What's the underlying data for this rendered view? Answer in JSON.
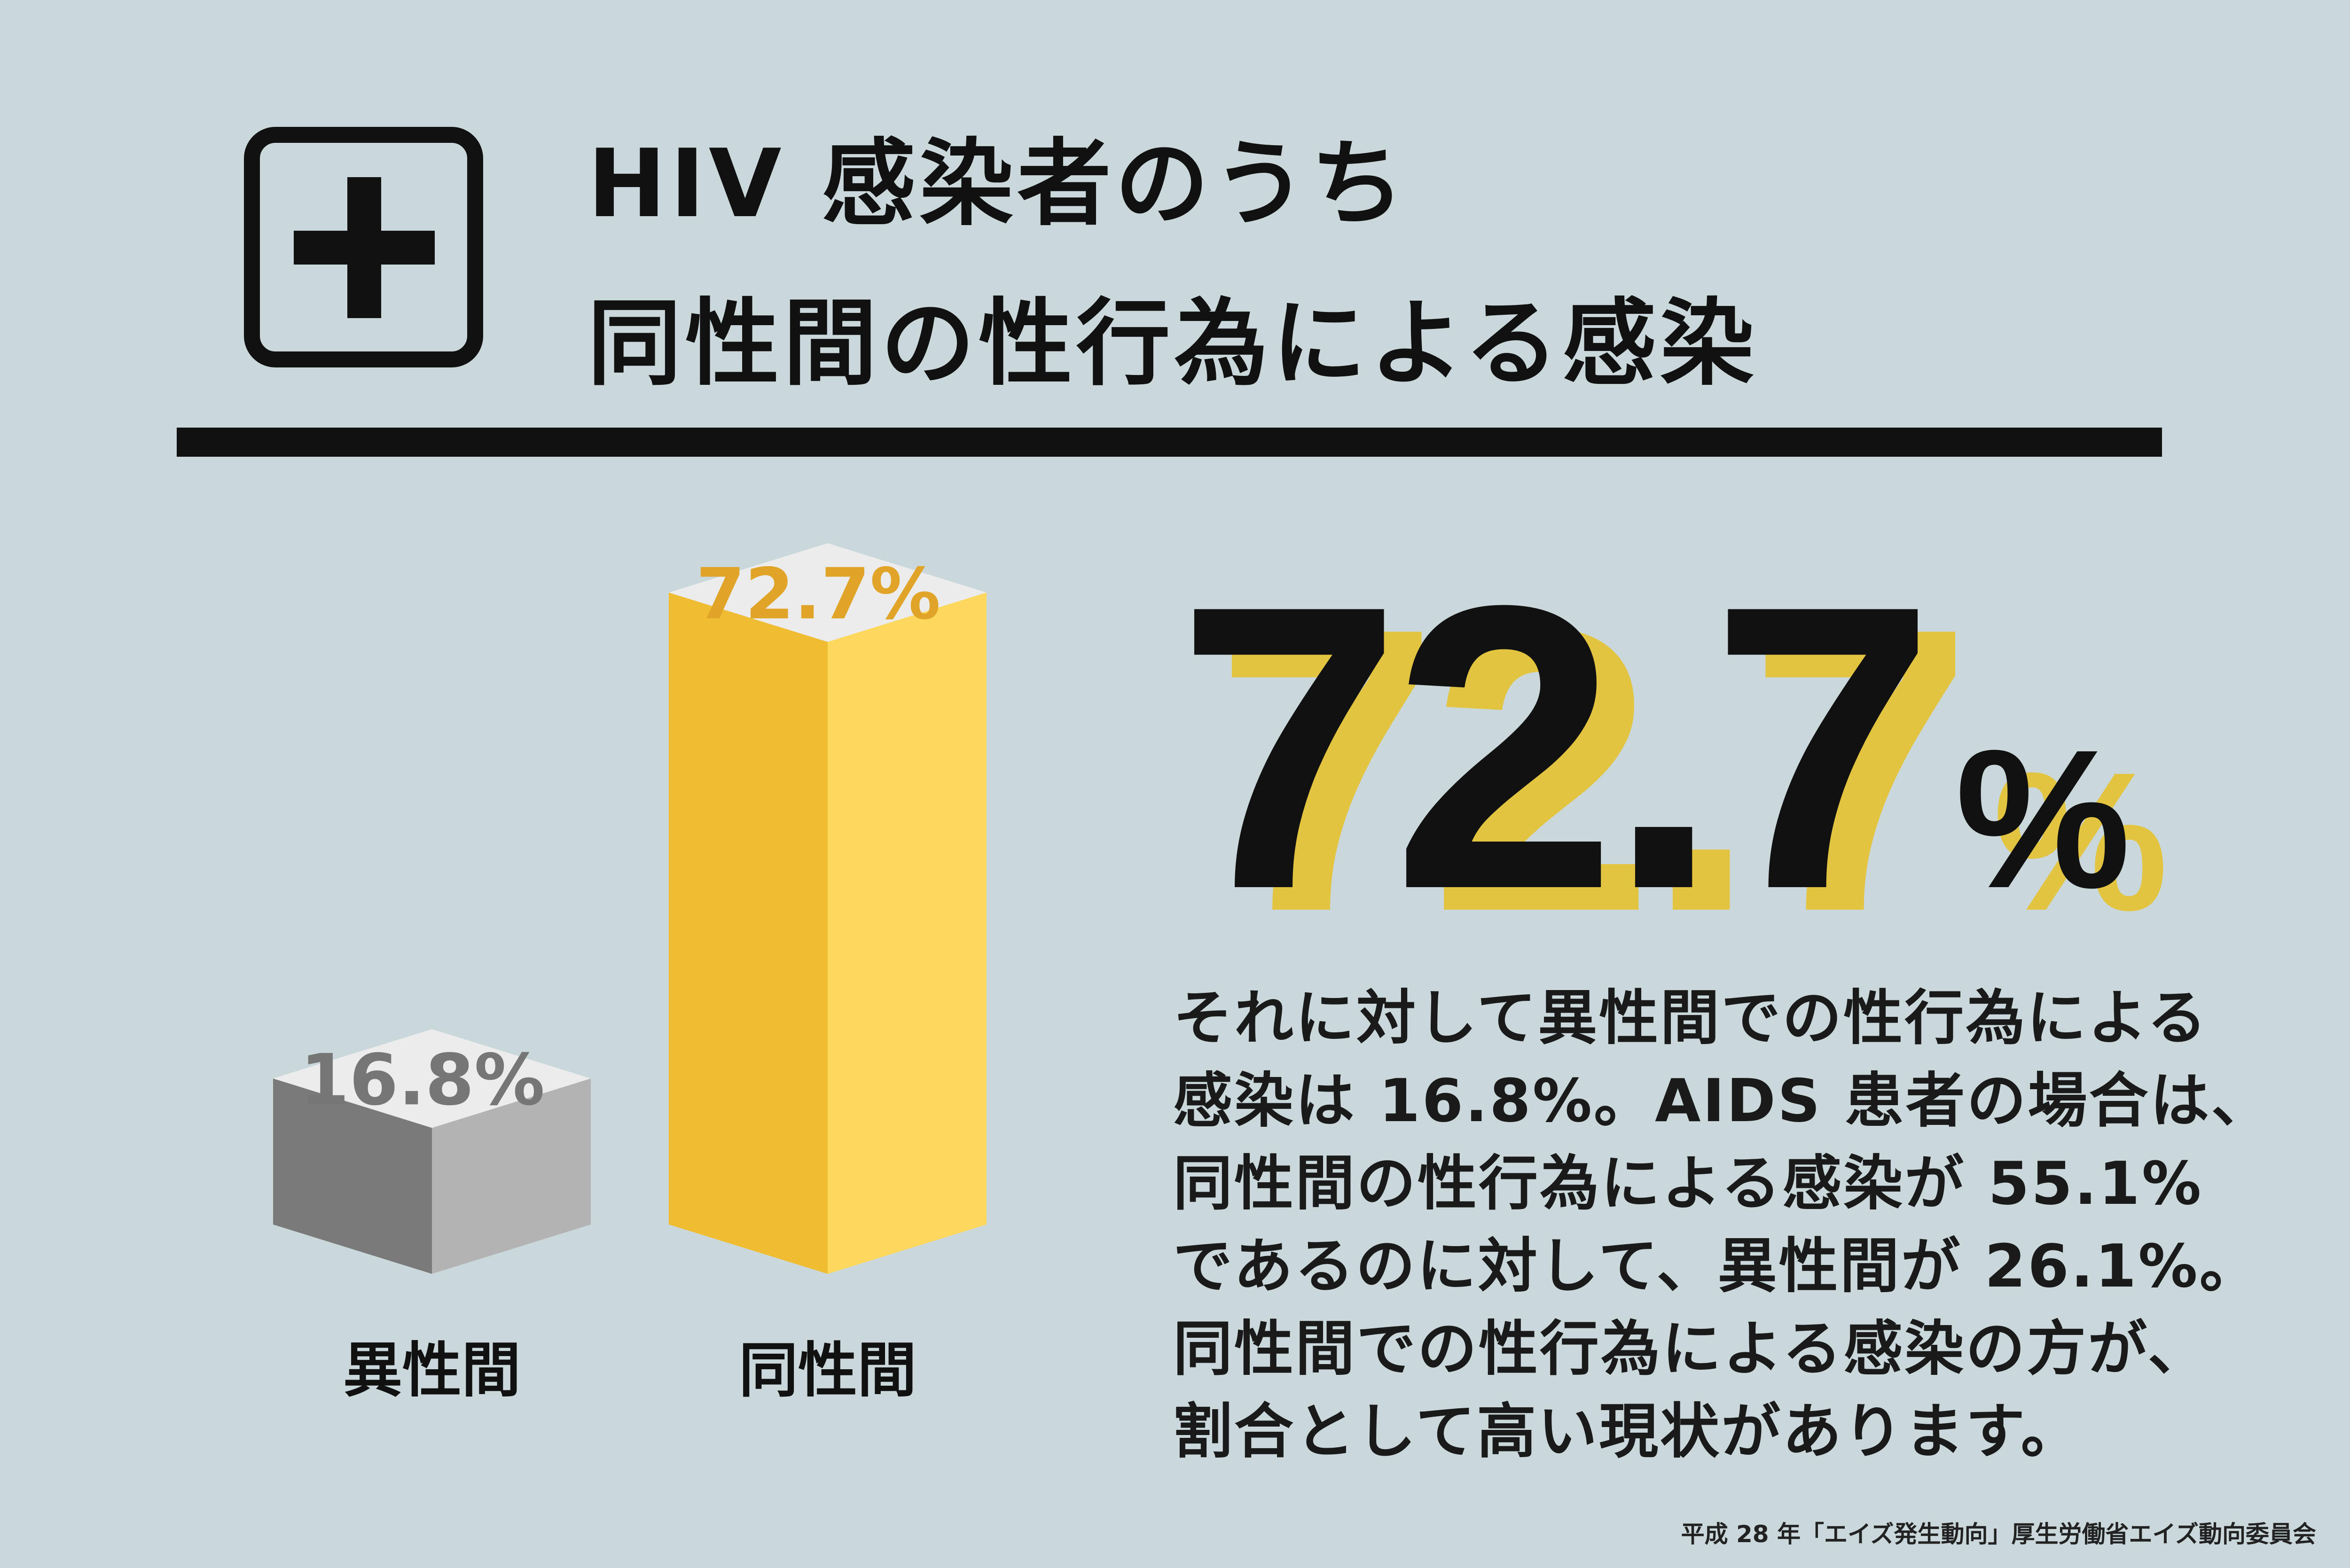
{
  "title_lines": [
    "HIV 感染者のうち",
    "同性間の性行為による感染"
  ],
  "chart_data": {
    "type": "bar",
    "categories": [
      "異性間",
      "同性間"
    ],
    "values": [
      16.8,
      72.7
    ],
    "value_labels": [
      "16.8%",
      "72.7%"
    ],
    "colors": [
      "#7a7a7a",
      "#f0bc32"
    ]
  },
  "headline": {
    "number": "72.7",
    "unit": "%"
  },
  "paragraph": [
    "それに対して異性間での性行為による",
    "感染は 16.8%。AIDS 患者の場合は、",
    "同性間の性行為による感染が 55.1%",
    "であるのに対して、異性間が 26.1%。",
    "同性間での性行為による感染の方が、",
    "割合として高い現状があります。"
  ],
  "source": "平成 28 年「エイズ発生動向」厚生労働省エイズ動向委員会"
}
